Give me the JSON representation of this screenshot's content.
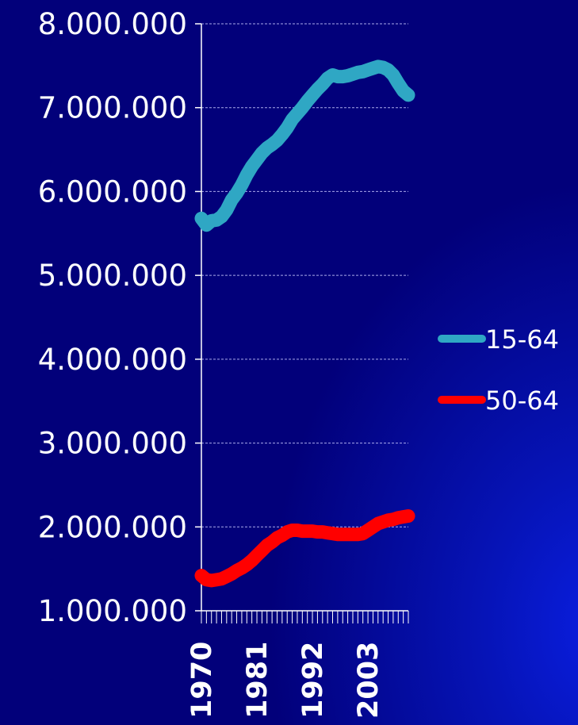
{
  "chart_data": {
    "type": "line",
    "x_start": 1970,
    "x_end": 2011,
    "x_tick_labels": [
      "1970",
      "1981",
      "1992",
      "2003"
    ],
    "ylim": [
      1000000,
      8000000
    ],
    "y_tick_labels": [
      "1.000.000",
      "2.000.000",
      "3.000.000",
      "4.000.000",
      "5.000.000",
      "6.000.000",
      "7.000.000",
      "8.000.000"
    ],
    "y_ticks": [
      1000000,
      2000000,
      3000000,
      4000000,
      5000000,
      6000000,
      7000000,
      8000000
    ],
    "grid": true,
    "legend_position": "right",
    "series": [
      {
        "name": "15-64",
        "color": "#2fa7c4",
        "x": [
          1970,
          1971,
          1972,
          1973,
          1974,
          1975,
          1976,
          1977,
          1978,
          1979,
          1980,
          1981,
          1982,
          1983,
          1984,
          1985,
          1986,
          1987,
          1988,
          1989,
          1990,
          1991,
          1992,
          1993,
          1994,
          1995,
          1996,
          1997,
          1998,
          1999,
          2000,
          2001,
          2002,
          2003,
          2004,
          2005,
          2006,
          2007,
          2008,
          2009,
          2010,
          2011
        ],
        "values": [
          5680000,
          5600000,
          5650000,
          5660000,
          5700000,
          5780000,
          5900000,
          5980000,
          6080000,
          6200000,
          6300000,
          6380000,
          6460000,
          6520000,
          6560000,
          6610000,
          6680000,
          6760000,
          6860000,
          6930000,
          7000000,
          7080000,
          7150000,
          7220000,
          7280000,
          7350000,
          7390000,
          7370000,
          7370000,
          7380000,
          7400000,
          7420000,
          7430000,
          7450000,
          7470000,
          7490000,
          7480000,
          7450000,
          7390000,
          7290000,
          7200000,
          7150000
        ]
      },
      {
        "name": "50-64",
        "color": "#ff0000",
        "x": [
          1970,
          1971,
          1972,
          1973,
          1974,
          1975,
          1976,
          1977,
          1978,
          1979,
          1980,
          1981,
          1982,
          1983,
          1984,
          1985,
          1986,
          1987,
          1988,
          1989,
          1990,
          1991,
          1992,
          1993,
          1994,
          1995,
          1996,
          1997,
          1998,
          1999,
          2000,
          2001,
          2002,
          2003,
          2004,
          2005,
          2006,
          2007,
          2008,
          2009,
          2010,
          2011
        ],
        "values": [
          1420000,
          1370000,
          1360000,
          1370000,
          1380000,
          1410000,
          1440000,
          1480000,
          1510000,
          1550000,
          1600000,
          1660000,
          1720000,
          1780000,
          1820000,
          1870000,
          1900000,
          1940000,
          1960000,
          1960000,
          1950000,
          1950000,
          1950000,
          1940000,
          1940000,
          1930000,
          1920000,
          1910000,
          1910000,
          1910000,
          1910000,
          1910000,
          1920000,
          1960000,
          2000000,
          2040000,
          2060000,
          2080000,
          2090000,
          2110000,
          2120000,
          2130000
        ]
      }
    ]
  }
}
